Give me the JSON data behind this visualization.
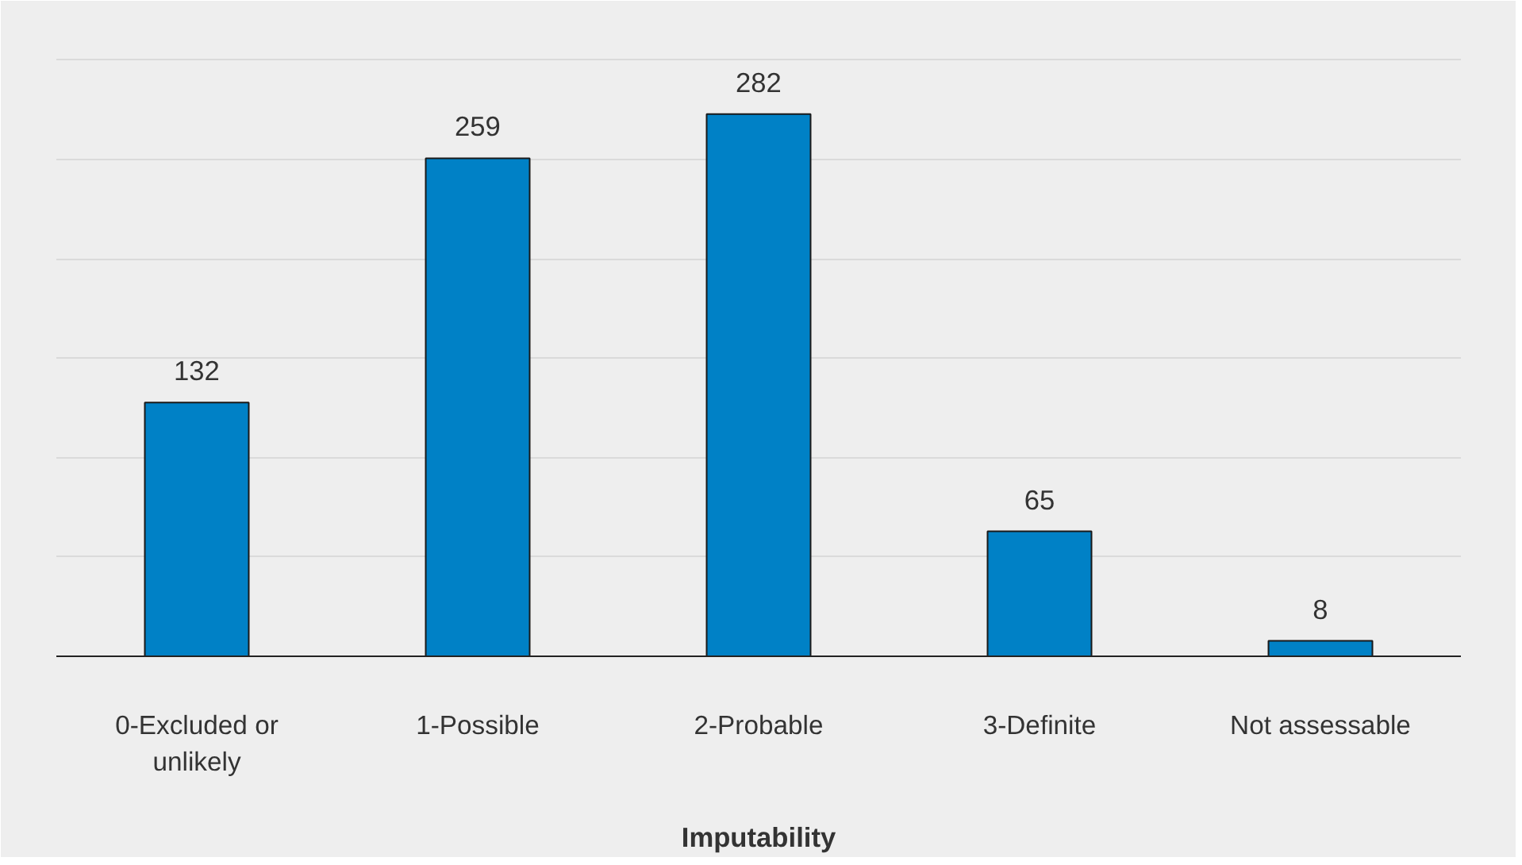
{
  "chart_data": {
    "type": "bar",
    "xlabel": "Imputability",
    "categories": [
      "0-Excluded or unlikely",
      "1-Possible",
      "2-Probable",
      "3-Definite",
      "Not assessable"
    ],
    "values": [
      132,
      259,
      282,
      65,
      8
    ],
    "color": "#0081c6",
    "data_labels": true,
    "ylim": [
      0,
      312
    ],
    "yticks": [
      {
        "value": 0,
        "label": null
      },
      {
        "value": 51.7,
        "label": null
      },
      {
        "value": 103.3,
        "label": null
      },
      {
        "value": 155,
        "label": null
      },
      {
        "value": 206.7,
        "label": null
      },
      {
        "value": 258.3,
        "label": null
      },
      {
        "value": 310,
        "label": null
      }
    ],
    "tick_labels": "x",
    "grid": "y"
  }
}
